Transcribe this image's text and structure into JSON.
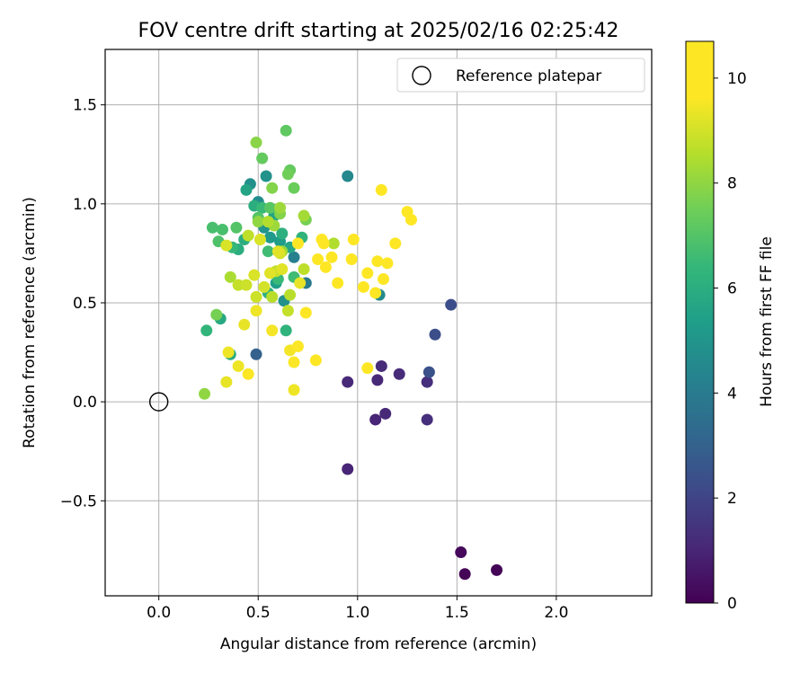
{
  "chart_data": {
    "type": "scatter",
    "title": "FOV centre drift starting at 2025/02/16 02:25:42",
    "xlabel": "Angular distance from reference (arcmin)",
    "ylabel": "Rotation from reference (arcmin)",
    "xlim": [
      -0.27,
      2.48
    ],
    "ylim": [
      -0.98,
      1.78
    ],
    "xticks": [
      "0.0",
      "0.5",
      "1.0",
      "1.5",
      "2.0"
    ],
    "xtick_values": [
      0.0,
      0.5,
      1.0,
      1.5,
      2.0
    ],
    "yticks": [
      "−0.5",
      "0.0",
      "0.5",
      "1.0",
      "1.5"
    ],
    "ytick_values": [
      -0.5,
      0.0,
      0.5,
      1.0,
      1.5
    ],
    "grid": true,
    "legend": {
      "placement": "top-right",
      "label": "Reference platepar"
    },
    "reference_point": {
      "x": 0.0,
      "y": 0.0
    },
    "colorbar": {
      "label": "Hours from first FF file",
      "range": [
        0,
        10.7
      ],
      "ticks": [
        "0",
        "2",
        "4",
        "6",
        "8",
        "10"
      ],
      "tick_values": [
        0,
        2,
        4,
        6,
        8,
        10
      ],
      "colormap": "viridis"
    },
    "points": [
      {
        "x": 1.7,
        "y": -0.85,
        "h": 0.1
      },
      {
        "x": 1.54,
        "y": -0.87,
        "h": 0.1
      },
      {
        "x": 1.52,
        "y": -0.76,
        "h": 0.2
      },
      {
        "x": 0.95,
        "y": -0.34,
        "h": 1.0
      },
      {
        "x": 1.09,
        "y": -0.09,
        "h": 1.0
      },
      {
        "x": 1.14,
        "y": -0.06,
        "h": 1.1
      },
      {
        "x": 0.95,
        "y": 0.1,
        "h": 1.1
      },
      {
        "x": 1.1,
        "y": 0.11,
        "h": 1.1
      },
      {
        "x": 1.12,
        "y": 0.18,
        "h": 1.2
      },
      {
        "x": 1.21,
        "y": 0.14,
        "h": 1.2
      },
      {
        "x": 1.35,
        "y": 0.1,
        "h": 1.3
      },
      {
        "x": 1.35,
        "y": -0.09,
        "h": 1.3
      },
      {
        "x": 1.36,
        "y": 0.15,
        "h": 2.4
      },
      {
        "x": 1.39,
        "y": 0.34,
        "h": 2.3
      },
      {
        "x": 1.47,
        "y": 0.49,
        "h": 2.3
      },
      {
        "x": 0.49,
        "y": 0.24,
        "h": 3.0
      },
      {
        "x": 0.95,
        "y": 1.14,
        "h": 4.5
      },
      {
        "x": 1.11,
        "y": 0.54,
        "h": 4.6
      },
      {
        "x": 0.74,
        "y": 0.6,
        "h": 4.0
      },
      {
        "x": 0.68,
        "y": 0.73,
        "h": 4.2
      },
      {
        "x": 0.46,
        "y": 1.1,
        "h": 4.8
      },
      {
        "x": 0.5,
        "y": 1.01,
        "h": 4.7
      },
      {
        "x": 0.54,
        "y": 1.14,
        "h": 4.9
      },
      {
        "x": 0.63,
        "y": 0.51,
        "h": 4.9
      },
      {
        "x": 0.53,
        "y": 0.88,
        "h": 5.0
      },
      {
        "x": 0.56,
        "y": 0.83,
        "h": 5.2
      },
      {
        "x": 0.61,
        "y": 0.81,
        "h": 5.3
      },
      {
        "x": 0.59,
        "y": 0.6,
        "h": 5.4
      },
      {
        "x": 0.44,
        "y": 1.07,
        "h": 5.6
      },
      {
        "x": 0.58,
        "y": 0.94,
        "h": 5.6
      },
      {
        "x": 0.66,
        "y": 0.78,
        "h": 5.7
      },
      {
        "x": 0.31,
        "y": 0.42,
        "h": 5.8
      },
      {
        "x": 0.36,
        "y": 0.24,
        "h": 5.9
      },
      {
        "x": 0.48,
        "y": 0.99,
        "h": 6.0
      },
      {
        "x": 0.4,
        "y": 0.77,
        "h": 6.0
      },
      {
        "x": 0.43,
        "y": 0.82,
        "h": 6.0
      },
      {
        "x": 0.55,
        "y": 0.55,
        "h": 6.1
      },
      {
        "x": 0.62,
        "y": 0.85,
        "h": 6.1
      },
      {
        "x": 0.64,
        "y": 0.36,
        "h": 6.2
      },
      {
        "x": 0.72,
        "y": 0.83,
        "h": 6.2
      },
      {
        "x": 0.24,
        "y": 0.36,
        "h": 6.3
      },
      {
        "x": 0.37,
        "y": 0.78,
        "h": 6.4
      },
      {
        "x": 0.52,
        "y": 0.98,
        "h": 6.5
      },
      {
        "x": 0.6,
        "y": 0.62,
        "h": 6.5
      },
      {
        "x": 0.68,
        "y": 0.63,
        "h": 6.6
      },
      {
        "x": 0.55,
        "y": 0.76,
        "h": 6.6
      },
      {
        "x": 0.27,
        "y": 0.88,
        "h": 6.8
      },
      {
        "x": 0.32,
        "y": 0.87,
        "h": 6.8
      },
      {
        "x": 0.3,
        "y": 0.81,
        "h": 6.9
      },
      {
        "x": 0.39,
        "y": 0.88,
        "h": 7.0
      },
      {
        "x": 0.5,
        "y": 0.93,
        "h": 7.0
      },
      {
        "x": 0.56,
        "y": 0.98,
        "h": 7.1
      },
      {
        "x": 0.64,
        "y": 1.37,
        "h": 7.2
      },
      {
        "x": 0.52,
        "y": 1.23,
        "h": 7.3
      },
      {
        "x": 0.66,
        "y": 1.17,
        "h": 7.3
      },
      {
        "x": 0.68,
        "y": 1.08,
        "h": 7.4
      },
      {
        "x": 0.65,
        "y": 1.15,
        "h": 7.5
      },
      {
        "x": 0.74,
        "y": 0.92,
        "h": 7.6
      },
      {
        "x": 0.29,
        "y": 0.44,
        "h": 7.6
      },
      {
        "x": 0.57,
        "y": 1.08,
        "h": 7.8
      },
      {
        "x": 0.61,
        "y": 0.95,
        "h": 7.8
      },
      {
        "x": 0.49,
        "y": 1.31,
        "h": 7.9
      },
      {
        "x": 0.23,
        "y": 0.04,
        "h": 8.0
      },
      {
        "x": 0.5,
        "y": 0.91,
        "h": 8.0
      },
      {
        "x": 0.62,
        "y": 0.76,
        "h": 8.1
      },
      {
        "x": 0.61,
        "y": 0.98,
        "h": 8.2
      },
      {
        "x": 0.58,
        "y": 0.89,
        "h": 8.2
      },
      {
        "x": 0.73,
        "y": 0.94,
        "h": 8.3
      },
      {
        "x": 0.36,
        "y": 0.63,
        "h": 8.4
      },
      {
        "x": 0.88,
        "y": 0.8,
        "h": 8.5
      },
      {
        "x": 0.55,
        "y": 0.91,
        "h": 8.5
      },
      {
        "x": 0.57,
        "y": 0.53,
        "h": 8.6
      },
      {
        "x": 0.66,
        "y": 0.54,
        "h": 8.6
      },
      {
        "x": 0.73,
        "y": 0.67,
        "h": 8.7
      },
      {
        "x": 0.45,
        "y": 0.84,
        "h": 8.7
      },
      {
        "x": 0.59,
        "y": 0.66,
        "h": 8.8
      },
      {
        "x": 0.65,
        "y": 0.46,
        "h": 8.8
      },
      {
        "x": 0.4,
        "y": 0.59,
        "h": 8.8
      },
      {
        "x": 0.44,
        "y": 0.59,
        "h": 8.9
      },
      {
        "x": 0.49,
        "y": 0.53,
        "h": 8.9
      },
      {
        "x": 0.53,
        "y": 0.58,
        "h": 9.0
      },
      {
        "x": 0.61,
        "y": 0.75,
        "h": 9.0
      },
      {
        "x": 0.34,
        "y": 0.79,
        "h": 9.1
      },
      {
        "x": 0.48,
        "y": 0.64,
        "h": 9.1
      },
      {
        "x": 0.51,
        "y": 0.82,
        "h": 9.1
      },
      {
        "x": 0.56,
        "y": 0.65,
        "h": 9.2
      },
      {
        "x": 0.62,
        "y": 0.67,
        "h": 9.2
      },
      {
        "x": 0.6,
        "y": 0.76,
        "h": 9.2
      },
      {
        "x": 0.71,
        "y": 0.6,
        "h": 9.3
      },
      {
        "x": 0.43,
        "y": 0.39,
        "h": 9.3
      },
      {
        "x": 0.34,
        "y": 0.1,
        "h": 9.3
      },
      {
        "x": 0.4,
        "y": 0.18,
        "h": 9.4
      },
      {
        "x": 0.49,
        "y": 0.46,
        "h": 9.4
      },
      {
        "x": 0.68,
        "y": 0.06,
        "h": 9.4
      },
      {
        "x": 0.35,
        "y": 0.25,
        "h": 9.4
      },
      {
        "x": 0.57,
        "y": 0.36,
        "h": 9.5
      },
      {
        "x": 0.66,
        "y": 0.26,
        "h": 9.5
      },
      {
        "x": 0.68,
        "y": 0.2,
        "h": 9.6
      },
      {
        "x": 0.7,
        "y": 0.28,
        "h": 9.6
      },
      {
        "x": 0.45,
        "y": 0.14,
        "h": 9.6
      },
      {
        "x": 0.74,
        "y": 0.45,
        "h": 9.7
      },
      {
        "x": 0.79,
        "y": 0.21,
        "h": 9.7
      },
      {
        "x": 0.8,
        "y": 0.72,
        "h": 9.7
      },
      {
        "x": 0.82,
        "y": 0.82,
        "h": 9.8
      },
      {
        "x": 0.83,
        "y": 0.8,
        "h": 9.8
      },
      {
        "x": 0.84,
        "y": 0.68,
        "h": 9.8
      },
      {
        "x": 0.87,
        "y": 0.73,
        "h": 9.9
      },
      {
        "x": 0.9,
        "y": 0.6,
        "h": 9.9
      },
      {
        "x": 0.7,
        "y": 0.8,
        "h": 9.9
      },
      {
        "x": 0.97,
        "y": 0.72,
        "h": 10.0
      },
      {
        "x": 0.98,
        "y": 0.82,
        "h": 10.0
      },
      {
        "x": 1.03,
        "y": 0.58,
        "h": 10.1
      },
      {
        "x": 1.05,
        "y": 0.65,
        "h": 10.1
      },
      {
        "x": 1.09,
        "y": 0.55,
        "h": 10.2
      },
      {
        "x": 1.1,
        "y": 0.71,
        "h": 10.2
      },
      {
        "x": 1.13,
        "y": 0.62,
        "h": 10.3
      },
      {
        "x": 1.15,
        "y": 0.7,
        "h": 10.3
      },
      {
        "x": 1.19,
        "y": 0.8,
        "h": 10.4
      },
      {
        "x": 1.25,
        "y": 0.96,
        "h": 10.4
      },
      {
        "x": 1.27,
        "y": 0.92,
        "h": 10.5
      },
      {
        "x": 1.12,
        "y": 1.07,
        "h": 10.5
      },
      {
        "x": 1.05,
        "y": 0.17,
        "h": 10.6
      }
    ]
  }
}
